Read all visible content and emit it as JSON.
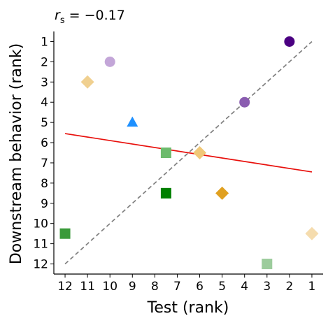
{
  "chart_data": {
    "type": "scatter",
    "title": "r_s = −0.17",
    "title_parts": {
      "var": "r",
      "sub": "s",
      "rest": " = −0.17"
    },
    "xlabel": "Test (rank)",
    "ylabel": "Downstream behavior (rank)",
    "xlim": [
      12.5,
      0.5
    ],
    "ylim": [
      12.5,
      0.5
    ],
    "x_reversed": true,
    "y_reversed": true,
    "xticks": [
      12,
      11,
      10,
      9,
      8,
      7,
      6,
      5,
      4,
      3,
      2,
      1
    ],
    "yticks": [
      1,
      2,
      3,
      4,
      5,
      6,
      7,
      8,
      9,
      10,
      11,
      12
    ],
    "grid": false,
    "points": [
      {
        "x": 2,
        "y": 1,
        "marker": "circle",
        "color": "#4b0082"
      },
      {
        "x": 10,
        "y": 2,
        "marker": "circle",
        "color": "#c3a6d8"
      },
      {
        "x": 11,
        "y": 3,
        "marker": "diamond",
        "color": "#f0d090"
      },
      {
        "x": 4,
        "y": 4,
        "marker": "circle",
        "color": "#8a5cb0"
      },
      {
        "x": 9,
        "y": 5,
        "marker": "triangle",
        "color": "#1e90ff"
      },
      {
        "x": 7.5,
        "y": 6.5,
        "marker": "square",
        "color": "#6dbb6d"
      },
      {
        "x": 6,
        "y": 6.5,
        "marker": "diamond",
        "color": "#f0c878"
      },
      {
        "x": 7.5,
        "y": 8.5,
        "marker": "square",
        "color": "#008000"
      },
      {
        "x": 5,
        "y": 8.5,
        "marker": "diamond",
        "color": "#e0a020"
      },
      {
        "x": 12,
        "y": 10.5,
        "marker": "square",
        "color": "#3a9a3a"
      },
      {
        "x": 1,
        "y": 10.5,
        "marker": "diamond",
        "color": "#f5dcae"
      },
      {
        "x": 3,
        "y": 12,
        "marker": "square",
        "color": "#9ccc9c"
      }
    ],
    "identity_line": {
      "x": [
        12,
        1
      ],
      "y": [
        12,
        1
      ],
      "style": "dashed",
      "color": "#808080"
    },
    "fit_line": {
      "x": [
        12,
        1
      ],
      "y": [
        5.55,
        7.45
      ],
      "color": "#e8100c"
    }
  }
}
